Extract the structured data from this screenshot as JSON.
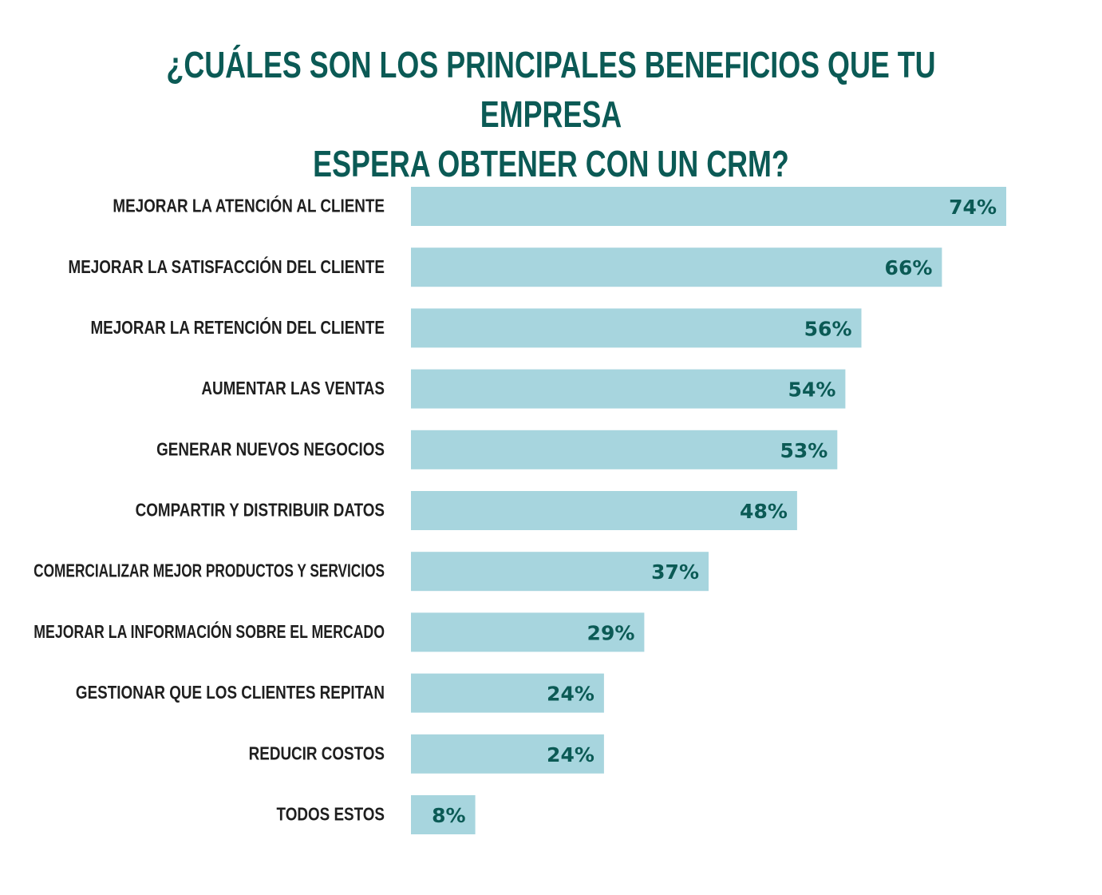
{
  "colors": {
    "title": "#0b5a55",
    "bar": "#a7d5de",
    "value_label": "#0b5a55",
    "category_label": "#1f1f1f",
    "background": "#ffffff"
  },
  "chart_data": {
    "type": "bar",
    "orientation": "horizontal",
    "title_lines": [
      "¿CUÁLES SON LOS PRINCIPALES BENEFICIOS QUE TU EMPRESA",
      "ESPERA OBTENER CON UN CRM?"
    ],
    "categories": [
      "MEJORAR LA ATENCIÓN AL CLIENTE",
      "MEJORAR LA SATISFACCIÓN DEL CLIENTE",
      "MEJORAR LA RETENCIÓN DEL CLIENTE",
      "AUMENTAR LAS VENTAS",
      "GENERAR NUEVOS NEGOCIOS",
      "COMPARTIR Y DISTRIBUIR DATOS",
      "COMERCIALIZAR MEJOR PRODUCTOS Y SERVICIOS",
      "MEJORAR LA INFORMACIÓN SOBRE EL MERCADO",
      "GESTIONAR QUE LOS CLIENTES REPITAN",
      "REDUCIR COSTOS",
      "TODOS ESTOS"
    ],
    "values": [
      74,
      66,
      56,
      54,
      53,
      48,
      37,
      29,
      24,
      24,
      8
    ],
    "value_labels": [
      "74%",
      "66%",
      "56%",
      "54%",
      "53%",
      "48%",
      "37%",
      "29%",
      "24%",
      "24%",
      "8%"
    ],
    "unit": "%",
    "xlim": [
      0,
      74
    ],
    "grid": false,
    "legend": "none"
  }
}
